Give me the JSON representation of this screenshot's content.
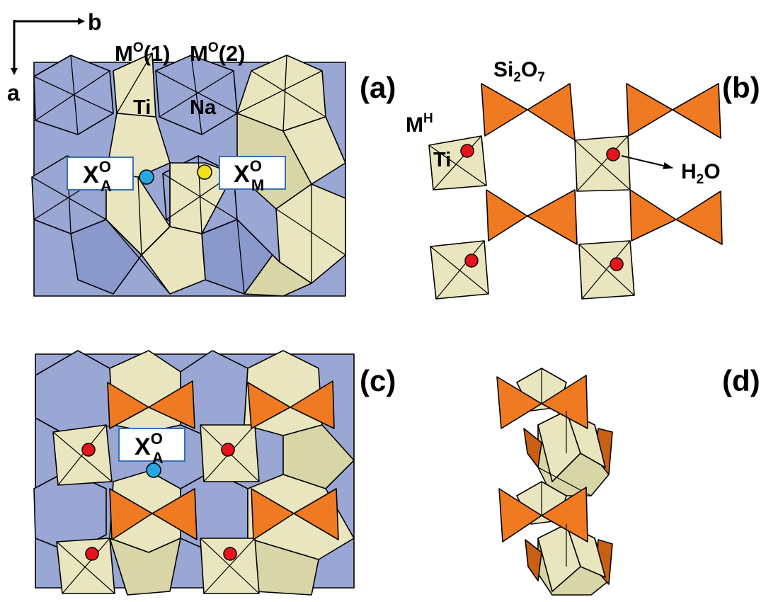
{
  "colors": {
    "blue_polyhedra": "#9aa6d4",
    "blue_dark_face": "#8a98cc",
    "yellow_polyhedra": "#e9e6bf",
    "yellow_dark_face": "#d8d5a6",
    "orange_tetrahedra": "#ef7a22",
    "orange_dark": "#c95f12",
    "red_site": "#e8141c",
    "cyan_site": "#25a7df",
    "yellow_site": "#f2e01b",
    "label_box_border": "#3a6fb0"
  },
  "axes": {
    "b": "b",
    "a": "a"
  },
  "panel_labels": {
    "a": "(a)",
    "b": "(b)",
    "c": "(c)",
    "d": "(d)"
  },
  "labels": {
    "mo1": {
      "main": "M",
      "sup": "O",
      "rest": "(1)"
    },
    "mo2": {
      "main": "M",
      "sup": "O",
      "rest": "(2)"
    },
    "ti_a": "Ti",
    "na": "Na",
    "xoa": {
      "main": "X",
      "sup": "O",
      "sub": "A"
    },
    "xom": {
      "main": "X",
      "sup": "O",
      "sub": "M"
    },
    "si2o7": {
      "p1": "Si",
      "s1": "2",
      "p2": "O",
      "s2": "7"
    },
    "mh": {
      "main": "M",
      "sup": "H"
    },
    "ti_b": "Ti",
    "h2o": {
      "p1": "H",
      "s1": "2",
      "p2": "O"
    },
    "xoa_c": {
      "main": "X",
      "sup": "O",
      "sub": "A"
    }
  },
  "icons": [
    "axis-arrow-b-icon",
    "axis-arrow-a-icon",
    "h2o-pointer-arrow-icon"
  ]
}
